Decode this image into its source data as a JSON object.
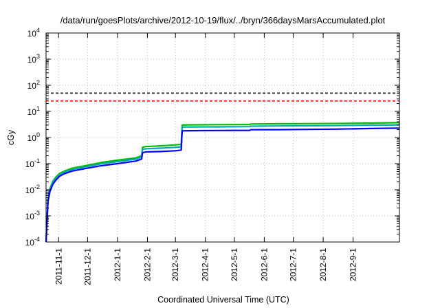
{
  "chart_data": {
    "type": "line",
    "title": "/data/run/goesPlots/archive/2012-10-19/flux/../bryn/366daysMarsAccumulated.plot",
    "xlabel": "Coordinated Universal Time (UTC)",
    "ylabel": "cGy",
    "yscale": "log",
    "ylim": [
      0.0001,
      10000
    ],
    "xlim": [
      "2011-10-19",
      "2012-10-19"
    ],
    "grid": true,
    "legend": "none",
    "y_ticks": [
      {
        "base": "10",
        "exp": "-4"
      },
      {
        "base": "10",
        "exp": "-3"
      },
      {
        "base": "10",
        "exp": "-2"
      },
      {
        "base": "10",
        "exp": "-1"
      },
      {
        "base": "10",
        "exp": "0"
      },
      {
        "base": "10",
        "exp": "1"
      },
      {
        "base": "10",
        "exp": "2"
      },
      {
        "base": "10",
        "exp": "3"
      },
      {
        "base": "10",
        "exp": "4"
      }
    ],
    "x_ticks": [
      "2011-11-1",
      "2011-12-1",
      "2012-1-1",
      "2012-2-1",
      "2012-3-1",
      "2012-4-1",
      "2012-5-1",
      "2012-6-1",
      "2012-7-1",
      "2012-8-1",
      "2012-9-1"
    ],
    "reference_lines": [
      {
        "color": "#000000",
        "style": "dashed",
        "y": 50
      },
      {
        "color": "#ff0000",
        "style": "dashed",
        "y": 25
      }
    ],
    "series": [
      {
        "color": "#00bb00",
        "x": [
          "2011-10-19",
          "2011-10-21",
          "2011-10-23",
          "2011-10-26",
          "2011-10-29",
          "2011-11-2",
          "2011-11-7",
          "2011-11-15",
          "2011-12-1",
          "2011-12-15",
          "2012-1-1",
          "2012-1-20",
          "2012-1-26",
          "2012-1-27",
          "2012-1-30",
          "2012-2-15",
          "2012-3-1",
          "2012-3-7",
          "2012-3-8",
          "2012-3-15",
          "2012-4-15",
          "2012-5-17",
          "2012-5-18",
          "2012-6-15",
          "2012-7-15",
          "2012-8-15",
          "2012-9-15",
          "2012-10-19"
        ],
        "y": [
          0.0001,
          0.0045,
          0.011,
          0.021,
          0.03,
          0.042,
          0.052,
          0.067,
          0.087,
          0.11,
          0.135,
          0.165,
          0.2,
          0.42,
          0.45,
          0.48,
          0.52,
          0.55,
          3.0,
          3.05,
          3.1,
          3.15,
          3.3,
          3.35,
          3.4,
          3.45,
          3.55,
          3.7
        ]
      },
      {
        "color": "#00aaaa",
        "x": [
          "2011-10-19",
          "2011-10-21",
          "2011-10-23",
          "2011-10-26",
          "2011-10-29",
          "2011-11-2",
          "2011-11-7",
          "2011-11-15",
          "2011-12-1",
          "2011-12-15",
          "2012-1-1",
          "2012-1-20",
          "2012-1-26",
          "2012-1-27",
          "2012-1-30",
          "2012-2-15",
          "2012-3-1",
          "2012-3-7",
          "2012-3-8",
          "2012-3-15",
          "2012-4-15",
          "2012-5-17",
          "2012-5-18",
          "2012-6-15",
          "2012-7-15",
          "2012-8-15",
          "2012-9-15",
          "2012-10-19"
        ],
        "y": [
          0.0001,
          0.0042,
          0.01,
          0.019,
          0.027,
          0.038,
          0.047,
          0.06,
          0.078,
          0.098,
          0.12,
          0.148,
          0.18,
          0.35,
          0.37,
          0.39,
          0.42,
          0.44,
          2.5,
          2.53,
          2.56,
          2.6,
          2.72,
          2.76,
          2.8,
          2.85,
          2.95,
          3.05
        ]
      },
      {
        "color": "#0000ff",
        "x": [
          "2011-10-19",
          "2011-10-21",
          "2011-10-23",
          "2011-10-26",
          "2011-10-29",
          "2011-11-2",
          "2011-11-7",
          "2011-11-15",
          "2011-12-1",
          "2011-12-15",
          "2012-1-1",
          "2012-1-20",
          "2012-1-26",
          "2012-1-27",
          "2012-1-30",
          "2012-2-15",
          "2012-3-1",
          "2012-3-7",
          "2012-3-8",
          "2012-3-15",
          "2012-4-15",
          "2012-5-17",
          "2012-5-18",
          "2012-6-15",
          "2012-7-15",
          "2012-8-15",
          "2012-9-15",
          "2012-10-19"
        ],
        "y": [
          0.0001,
          0.0035,
          0.0085,
          0.016,
          0.023,
          0.033,
          0.041,
          0.052,
          0.067,
          0.083,
          0.1,
          0.125,
          0.15,
          0.26,
          0.28,
          0.29,
          0.31,
          0.33,
          1.8,
          1.82,
          1.85,
          1.88,
          1.98,
          2.0,
          2.05,
          2.1,
          2.2,
          2.3
        ]
      }
    ]
  }
}
